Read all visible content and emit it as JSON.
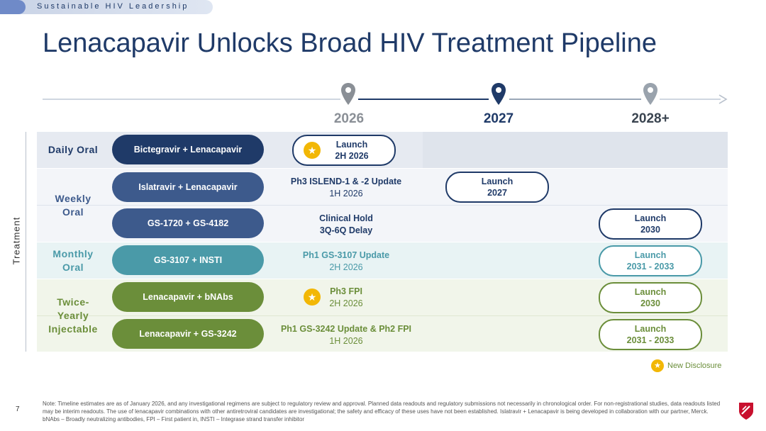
{
  "header": {
    "tag": "Sustainable HIV Leadership",
    "title": "Lenacapavir Unlocks Broad HIV Treatment Pipeline"
  },
  "timeline": {
    "years": [
      "2026",
      "2027",
      "2028+"
    ]
  },
  "side_label": "Treatment",
  "categories": {
    "daily_oral": "Daily Oral",
    "weekly_oral": "Weekly Oral",
    "monthly_oral": "Monthly Oral",
    "twice_yearly": "Twice-Yearly Injectable"
  },
  "rows": [
    {
      "regimen": "Bictegravir + Lenacapavir",
      "mid_line1": "Launch",
      "mid_line2": "2H 2026"
    },
    {
      "regimen": "Islatravir + Lenacapavir",
      "mid_line1": "Ph3 ISLEND-1 & -2 Update",
      "mid_line2": "1H 2026",
      "launch_line1": "Launch",
      "launch_line2": "2027"
    },
    {
      "regimen": "GS-1720 + GS-4182",
      "mid_line1": "Clinical Hold",
      "mid_line2": "3Q-6Q Delay",
      "launch_line1": "Launch",
      "launch_line2": "2030"
    },
    {
      "regimen": "GS-3107 + INSTI",
      "mid_line1": "Ph1 GS-3107 Update",
      "mid_line2": "2H 2026",
      "launch_line1": "Launch",
      "launch_line2": "2031 - 2033"
    },
    {
      "regimen": "Lenacapavir + bNAbs",
      "mid_line1": "Ph3 FPI",
      "mid_line2": "2H 2026",
      "launch_line1": "Launch",
      "launch_line2": "2030"
    },
    {
      "regimen": "Lenacapavir + GS-3242",
      "mid_line1": "Ph1 GS-3242 Update & Ph2 FPI",
      "mid_line2": "1H 2026",
      "launch_line1": "Launch",
      "launch_line2": "2031 - 2033"
    }
  ],
  "legend": {
    "new_disclosure": "New Disclosure"
  },
  "footer": {
    "page_number": "7",
    "note": "Note: Timeline estimates are as of January 2026, and any investigational regimens are subject to regulatory review and approval. Planned data readouts and regulatory submissions not necessarily in chronological order. For non-registrational studies, data readouts listed may be interim readouts. The use of lenacapavir combinations with other antiretroviral candidates are investigational; the safety and efficacy of these uses have not been established. Islatravir + Lenacapavir is being developed in collaboration with our partner, Merck. bNAbs – Broadly neutralizing antibodies, FPI – First patient in, INSTI – Integrase strand transfer inhibitor"
  },
  "colors": {
    "navy": "#1f3a68",
    "steel_blue": "#3d5a8c",
    "teal": "#4a9aa8",
    "green": "#6b8e3a",
    "star_gold": "#f2b705",
    "row_tint_blue": "#eef2f7",
    "row_tint_teal": "#e8f3f4",
    "row_tint_green": "#eef3e6"
  },
  "icons": [
    "map-pin-icon",
    "star-icon",
    "arrow-right-icon",
    "gilead-logo-icon"
  ]
}
